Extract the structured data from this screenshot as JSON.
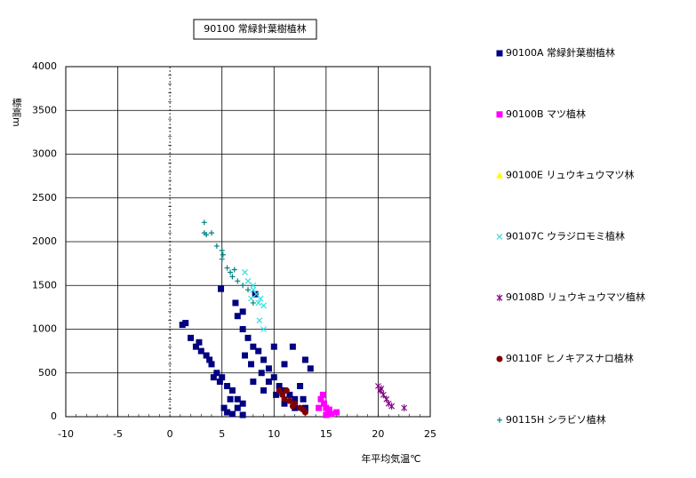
{
  "chart_data": {
    "type": "scatter",
    "title": "90100 常緑針葉樹植林",
    "xlabel": "年平均気温℃",
    "ylabel": "標高m",
    "xlim": [
      -10,
      25
    ],
    "xticks": [
      -10,
      -5,
      0,
      5,
      10,
      15,
      20,
      25
    ],
    "ylim": [
      0,
      4000
    ],
    "yticks": [
      0,
      500,
      1000,
      1500,
      2000,
      2500,
      3000,
      3500,
      4000
    ],
    "grid": true,
    "legend": "right",
    "series": [
      {
        "name": "90100A 常緑針葉樹植林",
        "color": "#000080",
        "marker": "square",
        "x": [
          1.5,
          1.2,
          2,
          2.5,
          3,
          3.5,
          4,
          4.5,
          5,
          5.5,
          6,
          6.5,
          7,
          5.2,
          5.5,
          6,
          7,
          6.5,
          4.2,
          3.8,
          2.8,
          4.8,
          5.8,
          4.9,
          6.3,
          6.5,
          7,
          7.5,
          8,
          8.5,
          9,
          9.5,
          10,
          10.5,
          11,
          11.5,
          12,
          8.2,
          7.8,
          8.8,
          9.5,
          10.2,
          11,
          12,
          11.8,
          13,
          13.5,
          12.5,
          12.8,
          13,
          9,
          8,
          7.2,
          10,
          11,
          7
        ],
        "y": [
          1070,
          1050,
          900,
          800,
          750,
          700,
          600,
          500,
          450,
          350,
          300,
          200,
          150,
          100,
          50,
          30,
          20,
          100,
          450,
          650,
          850,
          400,
          200,
          1460,
          1300,
          1150,
          1000,
          900,
          800,
          750,
          650,
          550,
          450,
          350,
          300,
          250,
          200,
          1400,
          600,
          500,
          400,
          250,
          150,
          100,
          800,
          650,
          550,
          350,
          200,
          100,
          300,
          400,
          700,
          800,
          600,
          1200
        ]
      },
      {
        "name": "90100B マツ植林",
        "color": "#ff00ff",
        "marker": "square",
        "x": [
          14.5,
          14.8,
          15,
          15.2,
          15.5,
          14.3,
          15,
          16,
          14.7,
          15.3
        ],
        "y": [
          200,
          150,
          100,
          50,
          30,
          100,
          20,
          50,
          250,
          80
        ]
      },
      {
        "name": "90100E リュウキュウマツ林",
        "color": "#ffff00",
        "marker": "triangle",
        "x": [],
        "y": []
      },
      {
        "name": "90107C ウラジロモミ植林",
        "color": "#33e0e0",
        "marker": "x",
        "x": [
          7.2,
          7.5,
          8,
          8.3,
          8.7,
          9,
          8.5,
          8,
          7.8,
          9,
          8.6
        ],
        "y": [
          1650,
          1550,
          1450,
          1400,
          1350,
          1270,
          1300,
          1500,
          1350,
          1000,
          1100
        ]
      },
      {
        "name": "90108D リュウキュウマツ植林",
        "color": "#800080",
        "marker": "star",
        "x": [
          20,
          20.2,
          20.5,
          20.8,
          21,
          21.3,
          22.5,
          20.3
        ],
        "y": [
          350,
          300,
          250,
          200,
          150,
          120,
          100,
          320
        ]
      },
      {
        "name": "90110F ヒノキアスナロ植林",
        "color": "#800000",
        "marker": "circle",
        "x": [
          10.5,
          10.8,
          11,
          11.5,
          12,
          12.5,
          12.8,
          13,
          11.2,
          11.8
        ],
        "y": [
          300,
          250,
          200,
          180,
          150,
          100,
          80,
          50,
          300,
          120
        ]
      },
      {
        "name": "90115H シラビソ植林",
        "color": "#008080",
        "marker": "plus",
        "x": [
          3.3,
          3.3,
          3.5,
          4,
          4.5,
          5,
          5,
          5.5,
          5.8,
          6,
          6.5,
          7,
          7.5,
          8,
          5.1,
          6.2
        ],
        "y": [
          2220,
          2100,
          2080,
          2100,
          1950,
          1900,
          1800,
          1700,
          1650,
          1600,
          1550,
          1500,
          1450,
          1300,
          1850,
          1680
        ]
      }
    ]
  }
}
